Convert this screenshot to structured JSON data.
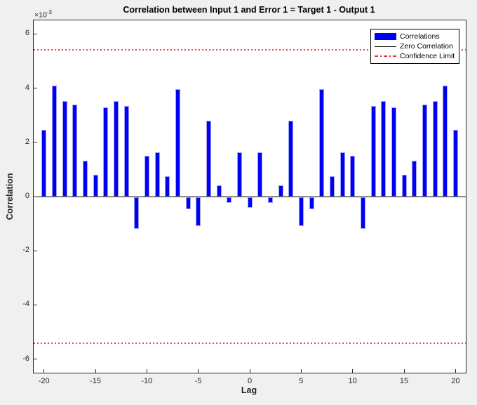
{
  "figure": {
    "background_color": "#f0f0f0"
  },
  "axes": {
    "y_multiplier_base": "×10",
    "y_multiplier_exp": "-3",
    "x_ticks": [
      -20,
      -15,
      -10,
      -5,
      0,
      5,
      10,
      15,
      20
    ],
    "y_ticks": [
      6,
      4,
      2,
      0,
      -2,
      -4,
      -6
    ],
    "tick_color": "#262626"
  },
  "legend": {
    "items": [
      {
        "label": "Correlations",
        "sample": "blue-bar-swatch"
      },
      {
        "label": "Zero Correlation",
        "sample": "black-solid-line"
      },
      {
        "label": "Confidence Limit",
        "sample": "red-dashdot-line"
      }
    ]
  },
  "colors": {
    "bar_fill": "#0000f2",
    "bar_edge": "#a0a0f8",
    "zero_line": "#000000",
    "confidence_line": "#f54545",
    "plot_background": "#ffffff",
    "figure_background": "#f0f0f0",
    "axis": "#262626"
  },
  "chart_data": {
    "type": "bar",
    "title": "Correlation between Input 1 and Error 1 = Target 1 - Output 1",
    "xlabel": "Lag",
    "ylabel": "Correlation",
    "y_unit": "1e-3",
    "xlim": [
      -21,
      21
    ],
    "ylim": [
      -6.5,
      6.5
    ],
    "grid": false,
    "legend_position": "northeast",
    "x": [
      -20,
      -19,
      -18,
      -17,
      -16,
      -15,
      -14,
      -13,
      -12,
      -11,
      -10,
      -9,
      -8,
      -7,
      -6,
      -5,
      -4,
      -3,
      -2,
      -1,
      0,
      1,
      2,
      3,
      4,
      5,
      6,
      7,
      8,
      9,
      10,
      11,
      12,
      13,
      14,
      15,
      16,
      17,
      18,
      19,
      20
    ],
    "values": [
      2.45,
      4.09,
      3.52,
      3.4,
      1.32,
      0.81,
      3.3,
      3.52,
      3.33,
      -1.17,
      1.5,
      1.64,
      0.76,
      3.97,
      -0.45,
      -1.06,
      2.8,
      0.41,
      -0.2,
      1.64,
      -0.38,
      1.64,
      -0.2,
      0.41,
      2.8,
      -1.06,
      -0.45,
      3.97,
      0.76,
      1.64,
      1.5,
      -1.17,
      3.33,
      3.52,
      3.3,
      0.81,
      1.32,
      3.4,
      3.52,
      4.09,
      2.45
    ],
    "zero_line": 0,
    "confidence_limits": [
      5.4,
      -5.4
    ]
  }
}
